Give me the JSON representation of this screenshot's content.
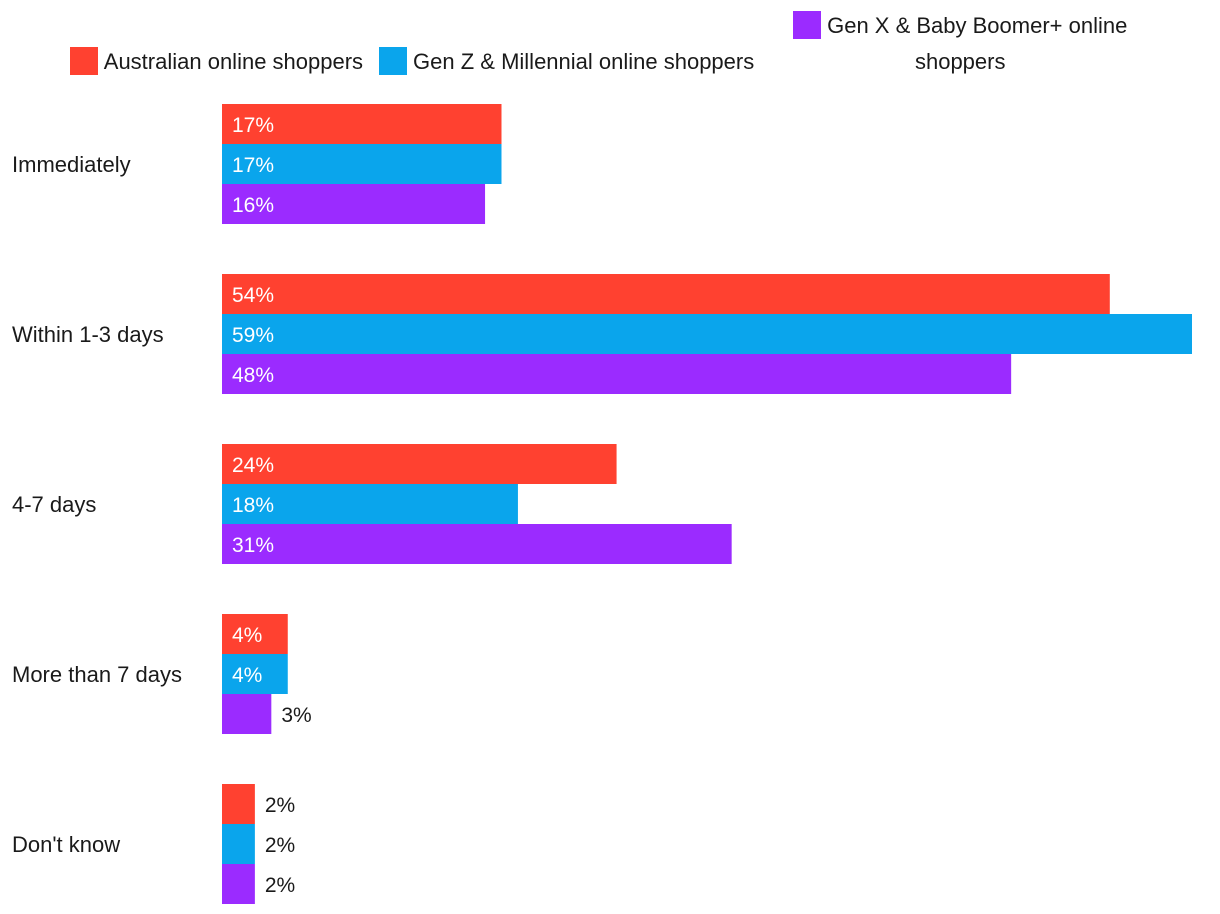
{
  "chart_data": {
    "type": "bar",
    "orientation": "horizontal",
    "categories": [
      "Immediately",
      "Within 1-3 days",
      "4-7 days",
      "More than 7 days",
      "Don't know"
    ],
    "series": [
      {
        "name": "Australian online shoppers",
        "color": "#ff4130",
        "values": [
          17,
          54,
          24,
          4,
          2
        ]
      },
      {
        "name": "Gen Z & Millennial online shoppers",
        "color": "#0aa5ec",
        "values": [
          17,
          59,
          18,
          4,
          2
        ]
      },
      {
        "name": "Gen X & Baby Boomer+ online shoppers",
        "color": "#9b2bff",
        "values": [
          16,
          48,
          31,
          3,
          2
        ]
      }
    ],
    "value_suffix": "%",
    "legend_position": "top",
    "xlim": [
      0,
      59
    ],
    "grid": false
  }
}
